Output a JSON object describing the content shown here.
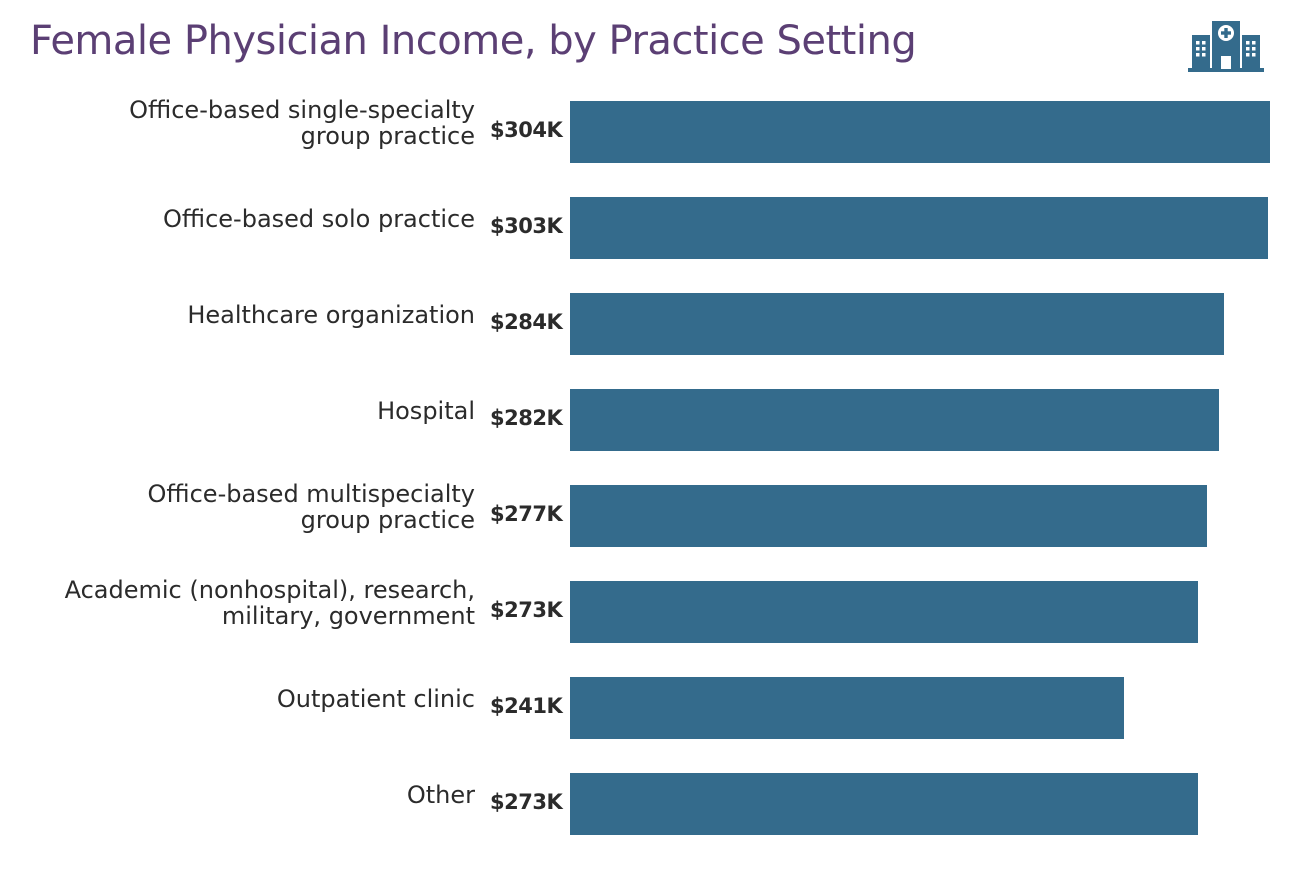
{
  "header": {
    "title": "Female Physician Income, by Practice Setting",
    "icon": "hospital-building-icon"
  },
  "colors": {
    "title": "#5b3f74",
    "bar": "#346b8c",
    "text": "#2b2b2b"
  },
  "rows": [
    {
      "label": "Office-based single-specialty\ngroup practice",
      "value_label": "$304K",
      "value": 304
    },
    {
      "label": "Office-based solo practice",
      "value_label": "$303K",
      "value": 303
    },
    {
      "label": "Healthcare organization",
      "value_label": "$284K",
      "value": 284
    },
    {
      "label": "Hospital",
      "value_label": "$282K",
      "value": 282
    },
    {
      "label": "Office-based multispecialty\ngroup practice",
      "value_label": "$277K",
      "value": 277
    },
    {
      "label": "Academic (nonhospital), research,\nmilitary, government",
      "value_label": "$273K",
      "value": 273
    },
    {
      "label": "Outpatient clinic",
      "value_label": "$241K",
      "value": 241
    },
    {
      "label": "Other",
      "value_label": "$273K",
      "value": 273
    }
  ],
  "chart_data": {
    "type": "bar",
    "orientation": "horizontal",
    "title": "Female Physician Income, by Practice Setting",
    "categories": [
      "Office-based single-specialty group practice",
      "Office-based solo practice",
      "Healthcare organization",
      "Hospital",
      "Office-based multispecialty group practice",
      "Academic (nonhospital), research, military, government",
      "Outpatient clinic",
      "Other"
    ],
    "values": [
      304,
      303,
      284,
      282,
      277,
      273,
      241,
      273
    ],
    "value_labels": [
      "$304K",
      "$303K",
      "$284K",
      "$282K",
      "$277K",
      "$273K",
      "$241K",
      "$273K"
    ],
    "unit": "thousand USD",
    "xlabel": "",
    "ylabel": "",
    "grid": false,
    "legend": null
  }
}
